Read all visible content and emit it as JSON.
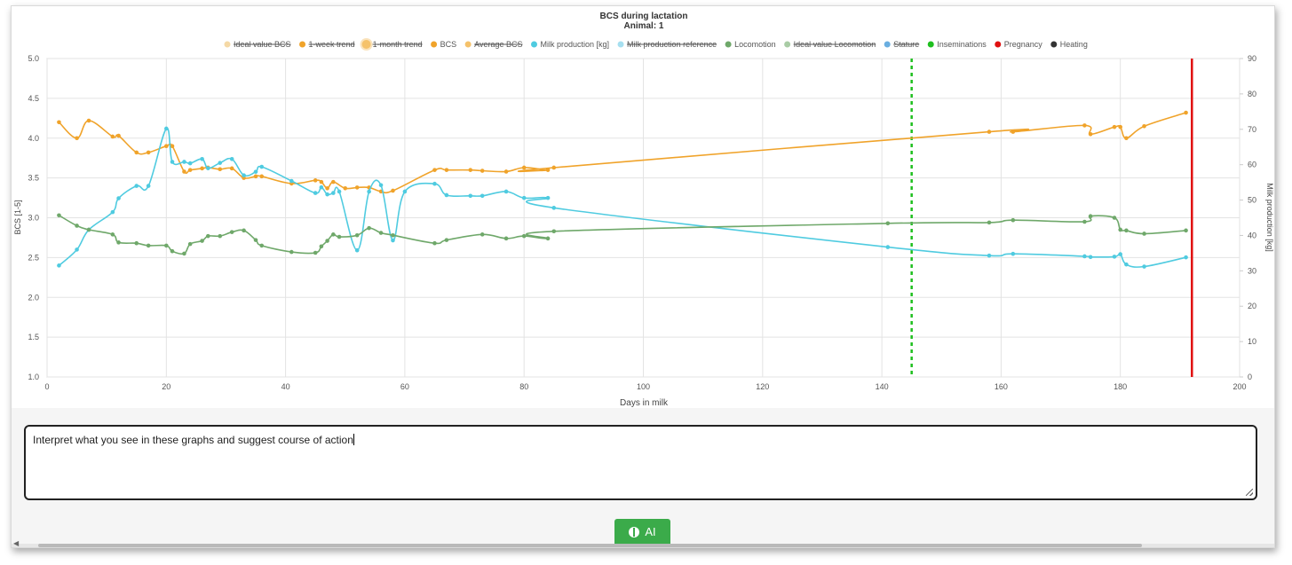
{
  "chart_data": {
    "type": "line",
    "title": "BCS during lactation",
    "subtitle": "Animal: 1",
    "xlabel": "Days in milk",
    "ylabel_left": "BCS [1-5]",
    "ylabel_right": "Milk production [kg]",
    "xlim": [
      0,
      200
    ],
    "ylim_left": [
      1.0,
      5.0
    ],
    "ylim_right": [
      0,
      90
    ],
    "x_ticks": [
      "0",
      "20",
      "40",
      "60",
      "80",
      "100",
      "120",
      "140",
      "160",
      "180",
      "200"
    ],
    "y_left_ticks": [
      "1.0",
      "1.5",
      "2.0",
      "2.5",
      "3.0",
      "3.5",
      "4.0",
      "4.5",
      "5.0"
    ],
    "y_right_ticks": [
      "0",
      "10",
      "20",
      "30",
      "40",
      "50",
      "60",
      "70",
      "80",
      "90"
    ],
    "grid": true,
    "legend_position": "top",
    "legend": [
      {
        "label": "Ideal value BCS",
        "color": "#f5d9a6",
        "hidden": true,
        "marker": "dot"
      },
      {
        "label": "1-week trend",
        "color": "#f0a32a",
        "hidden": true,
        "marker": "dot"
      },
      {
        "label": "1-month trend",
        "color": "#f5c26b",
        "hidden": true,
        "marker": "big-dot"
      },
      {
        "label": "BCS",
        "color": "#f0a32a",
        "hidden": false,
        "marker": "dot"
      },
      {
        "label": "Average BCS",
        "color": "#f5c26b",
        "hidden": true,
        "marker": "dot"
      },
      {
        "label": "Milk production [kg]",
        "color": "#4fcbe0",
        "hidden": false,
        "marker": "dot"
      },
      {
        "label": "Milk production reference",
        "color": "#a6dff0",
        "hidden": true,
        "marker": "dot"
      },
      {
        "label": "Locomotion",
        "color": "#6fa86a",
        "hidden": false,
        "marker": "dot"
      },
      {
        "label": "Ideal value Locomotion",
        "color": "#a9cca5",
        "hidden": true,
        "marker": "dot"
      },
      {
        "label": "Stature",
        "color": "#6aaee0",
        "hidden": true,
        "marker": "dot"
      },
      {
        "label": "Inseminations",
        "color": "#1fbf1f",
        "hidden": false,
        "marker": "dot"
      },
      {
        "label": "Pregnancy",
        "color": "#e01010",
        "hidden": false,
        "marker": "dot"
      },
      {
        "label": "Heating",
        "color": "#333333",
        "hidden": false,
        "marker": "dot"
      }
    ],
    "series": [
      {
        "name": "BCS",
        "axis": "left",
        "color": "#f0a32a",
        "points": [
          [
            2,
            4.2
          ],
          [
            5,
            4.0
          ],
          [
            7,
            4.22
          ],
          [
            11,
            4.02
          ],
          [
            12,
            4.03
          ],
          [
            15,
            3.82
          ],
          [
            17,
            3.82
          ],
          [
            20,
            3.9
          ],
          [
            21,
            3.9
          ],
          [
            23,
            3.58
          ],
          [
            24,
            3.6
          ],
          [
            26,
            3.62
          ],
          [
            27,
            3.63
          ],
          [
            29,
            3.61
          ],
          [
            31,
            3.62
          ],
          [
            33,
            3.5
          ],
          [
            35,
            3.52
          ],
          [
            36,
            3.52
          ],
          [
            41,
            3.43
          ],
          [
            45,
            3.47
          ],
          [
            46,
            3.45
          ],
          [
            47,
            3.37
          ],
          [
            48,
            3.45
          ],
          [
            50,
            3.37
          ],
          [
            52,
            3.38
          ],
          [
            54,
            3.38
          ],
          [
            56,
            3.33
          ],
          [
            58,
            3.34
          ],
          [
            65,
            3.6
          ],
          [
            67,
            3.6
          ],
          [
            71,
            3.6
          ],
          [
            73,
            3.59
          ],
          [
            77,
            3.58
          ],
          [
            80,
            3.63
          ],
          [
            84,
            3.6
          ],
          [
            85,
            3.63
          ],
          [
            158,
            4.08
          ],
          [
            162,
            4.08
          ],
          [
            174,
            4.16
          ],
          [
            175,
            4.05
          ],
          [
            179,
            4.14
          ],
          [
            180,
            4.14
          ],
          [
            181,
            4.0
          ],
          [
            184,
            4.15
          ],
          [
            191,
            4.32
          ]
        ]
      },
      {
        "name": "Milk production [kg]",
        "axis": "right",
        "color": "#4fcbe0",
        "points": [
          [
            2,
            31.5
          ],
          [
            5,
            36
          ],
          [
            7,
            41.6
          ],
          [
            11,
            46.6
          ],
          [
            12,
            50.5
          ],
          [
            15,
            54
          ],
          [
            17,
            54
          ],
          [
            20,
            70.2
          ],
          [
            21,
            60.8
          ],
          [
            23,
            60.8
          ],
          [
            24,
            60.4
          ],
          [
            26,
            61.6
          ],
          [
            27,
            59
          ],
          [
            29,
            60.5
          ],
          [
            31,
            61.6
          ],
          [
            33,
            57
          ],
          [
            35,
            58
          ],
          [
            36,
            59.4
          ],
          [
            41,
            55.4
          ],
          [
            45,
            52
          ],
          [
            46,
            53.6
          ],
          [
            47,
            51.6
          ],
          [
            48,
            52
          ],
          [
            49,
            52.4
          ],
          [
            52,
            35.8
          ],
          [
            54,
            52.4
          ],
          [
            56,
            54.2
          ],
          [
            58,
            38.6
          ],
          [
            60,
            52.4
          ],
          [
            65,
            54.6
          ],
          [
            67,
            51.4
          ],
          [
            71,
            51.2
          ],
          [
            73,
            51.2
          ],
          [
            77,
            52.4
          ],
          [
            80,
            50.6
          ],
          [
            84,
            50.6
          ],
          [
            85,
            47.8
          ],
          [
            141,
            36.7
          ],
          [
            158,
            34.3
          ],
          [
            162,
            34.8
          ],
          [
            174,
            34.1
          ],
          [
            175,
            33.9
          ],
          [
            179,
            34
          ],
          [
            180,
            34.7
          ],
          [
            181,
            31.8
          ],
          [
            184,
            31.2
          ],
          [
            191,
            33.8
          ]
        ]
      },
      {
        "name": "Locomotion",
        "axis": "left",
        "color": "#6fa86a",
        "points": [
          [
            2,
            3.03
          ],
          [
            5,
            2.9
          ],
          [
            7,
            2.85
          ],
          [
            11,
            2.79
          ],
          [
            12,
            2.69
          ],
          [
            15,
            2.68
          ],
          [
            17,
            2.65
          ],
          [
            20,
            2.65
          ],
          [
            21,
            2.58
          ],
          [
            23,
            2.55
          ],
          [
            24,
            2.67
          ],
          [
            26,
            2.71
          ],
          [
            27,
            2.77
          ],
          [
            29,
            2.77
          ],
          [
            31,
            2.82
          ],
          [
            33,
            2.84
          ],
          [
            35,
            2.72
          ],
          [
            36,
            2.65
          ],
          [
            41,
            2.57
          ],
          [
            45,
            2.56
          ],
          [
            46,
            2.64
          ],
          [
            47,
            2.71
          ],
          [
            48,
            2.79
          ],
          [
            49,
            2.76
          ],
          [
            52,
            2.78
          ],
          [
            54,
            2.87
          ],
          [
            56,
            2.81
          ],
          [
            58,
            2.78
          ],
          [
            65,
            2.68
          ],
          [
            67,
            2.72
          ],
          [
            73,
            2.79
          ],
          [
            77,
            2.74
          ],
          [
            80,
            2.77
          ],
          [
            84,
            2.74
          ],
          [
            85,
            2.83
          ],
          [
            141,
            2.93
          ],
          [
            158,
            2.94
          ],
          [
            162,
            2.97
          ],
          [
            174,
            2.95
          ],
          [
            175,
            3.02
          ],
          [
            179,
            3.0
          ],
          [
            180,
            2.85
          ],
          [
            181,
            2.84
          ],
          [
            184,
            2.8
          ],
          [
            191,
            2.84
          ]
        ]
      }
    ],
    "markers": [
      {
        "name": "Inseminations",
        "x": 145,
        "style": "dashed",
        "color": "#1fbf1f"
      },
      {
        "name": "Pregnancy",
        "x": 192,
        "style": "solid",
        "color": "#e01010"
      }
    ]
  },
  "input": {
    "value": "Interpret what you see in these graphs and suggest course of action"
  },
  "ai_button": {
    "label": "AI",
    "icon": "brain-icon",
    "color": "#3bab4a"
  }
}
